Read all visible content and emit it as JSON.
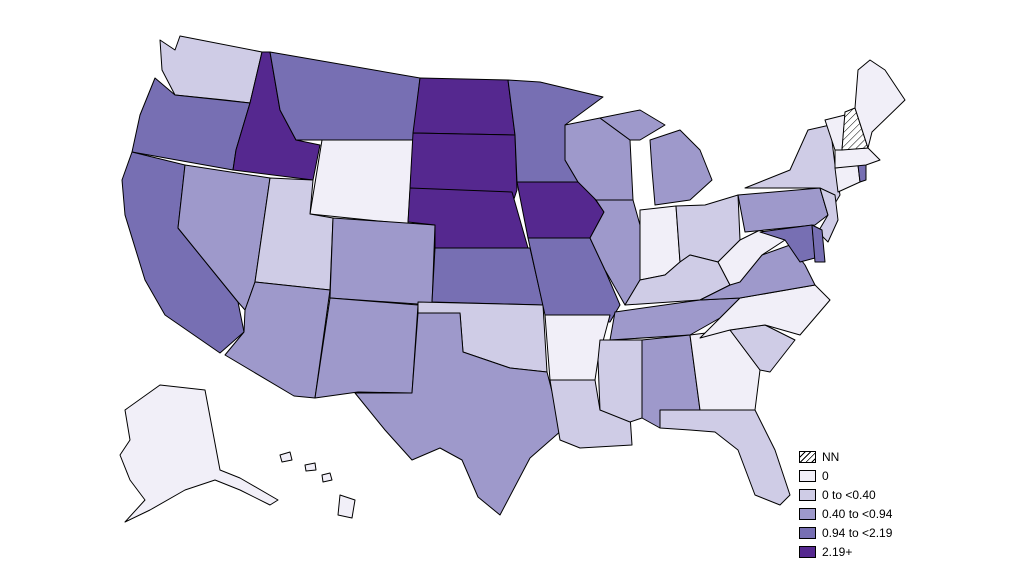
{
  "palette": {
    "nn": "hatch",
    "zero": "#f1eff8",
    "low": "#cfcce6",
    "mid": "#9e99cb",
    "high": "#776fb3",
    "top": "#55288f"
  },
  "legend": {
    "items": [
      {
        "key": "nn",
        "label": "NN"
      },
      {
        "key": "zero",
        "label": "0"
      },
      {
        "key": "low",
        "label": "0 to <0.40"
      },
      {
        "key": "mid",
        "label": "0.40 to <0.94"
      },
      {
        "key": "high",
        "label": "0.94 to <2.19"
      },
      {
        "key": "top",
        "label": "2.19+"
      }
    ]
  },
  "states": [
    {
      "name": "Washington",
      "class": "low"
    },
    {
      "name": "Oregon",
      "class": "high"
    },
    {
      "name": "California",
      "class": "high"
    },
    {
      "name": "Idaho",
      "class": "top"
    },
    {
      "name": "Nevada",
      "class": "mid"
    },
    {
      "name": "Montana",
      "class": "high"
    },
    {
      "name": "Wyoming",
      "class": "zero"
    },
    {
      "name": "Utah",
      "class": "low"
    },
    {
      "name": "Arizona",
      "class": "mid"
    },
    {
      "name": "Colorado",
      "class": "mid"
    },
    {
      "name": "New Mexico",
      "class": "mid"
    },
    {
      "name": "North Dakota",
      "class": "top"
    },
    {
      "name": "South Dakota",
      "class": "top"
    },
    {
      "name": "Nebraska",
      "class": "top"
    },
    {
      "name": "Kansas",
      "class": "high"
    },
    {
      "name": "Oklahoma",
      "class": "low"
    },
    {
      "name": "Texas",
      "class": "mid"
    },
    {
      "name": "Minnesota",
      "class": "high"
    },
    {
      "name": "Iowa",
      "class": "top"
    },
    {
      "name": "Missouri",
      "class": "high"
    },
    {
      "name": "Arkansas",
      "class": "zero"
    },
    {
      "name": "Louisiana",
      "class": "low"
    },
    {
      "name": "Wisconsin",
      "class": "mid"
    },
    {
      "name": "Illinois",
      "class": "mid"
    },
    {
      "name": "Michigan",
      "class": "mid"
    },
    {
      "name": "Indiana",
      "class": "zero"
    },
    {
      "name": "Ohio",
      "class": "low"
    },
    {
      "name": "Kentucky",
      "class": "low"
    },
    {
      "name": "Tennessee",
      "class": "mid"
    },
    {
      "name": "Mississippi",
      "class": "low"
    },
    {
      "name": "Alabama",
      "class": "mid"
    },
    {
      "name": "Georgia",
      "class": "zero"
    },
    {
      "name": "Florida",
      "class": "low"
    },
    {
      "name": "South Carolina",
      "class": "low"
    },
    {
      "name": "North Carolina",
      "class": "zero"
    },
    {
      "name": "Virginia",
      "class": "mid"
    },
    {
      "name": "West Virginia",
      "class": "zero"
    },
    {
      "name": "Pennsylvania",
      "class": "mid"
    },
    {
      "name": "New York",
      "class": "low"
    },
    {
      "name": "New Jersey",
      "class": "low"
    },
    {
      "name": "Delaware",
      "class": "high"
    },
    {
      "name": "Maryland",
      "class": "high"
    },
    {
      "name": "Connecticut",
      "class": "zero"
    },
    {
      "name": "Rhode Island",
      "class": "high"
    },
    {
      "name": "Massachusetts",
      "class": "zero"
    },
    {
      "name": "Vermont",
      "class": "zero"
    },
    {
      "name": "New Hampshire",
      "class": "nn"
    },
    {
      "name": "Maine",
      "class": "zero"
    },
    {
      "name": "Alaska",
      "class": "zero"
    },
    {
      "name": "Hawaii",
      "class": "zero"
    }
  ]
}
